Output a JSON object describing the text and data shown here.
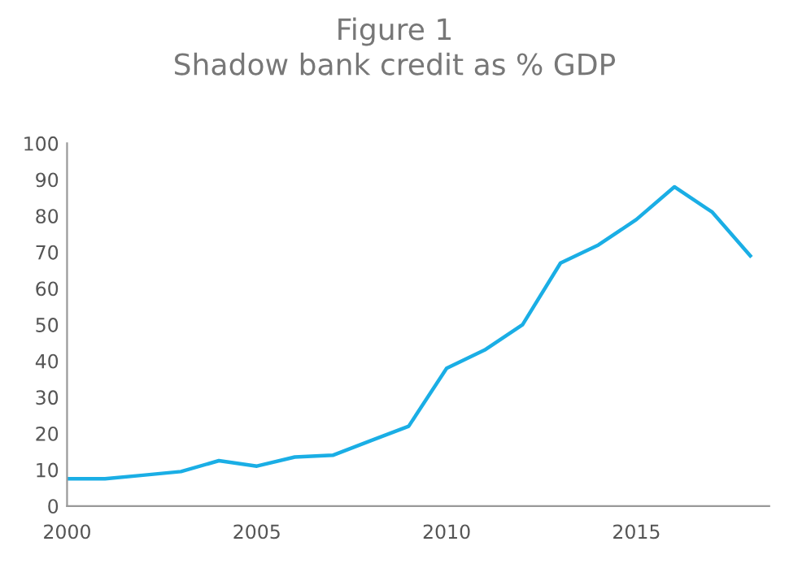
{
  "chart_data": {
    "type": "line",
    "title": "Figure 1\nShadow bank credit as % GDP",
    "x": [
      2000,
      2001,
      2002,
      2003,
      2004,
      2005,
      2006,
      2007,
      2008,
      2009,
      2010,
      2011,
      2012,
      2013,
      2014,
      2015,
      2016,
      2017,
      2018
    ],
    "series": [
      {
        "color": "#1aaee5",
        "values": [
          7.5,
          7.5,
          8.5,
          9.5,
          12.5,
          11,
          13.5,
          14,
          18,
          22,
          38,
          43,
          50,
          67,
          72,
          79,
          88,
          81,
          69
        ]
      }
    ],
    "xlim": [
      2000,
      2018.5
    ],
    "xticks": [
      2000,
      2005,
      2010,
      2015
    ],
    "ylim": [
      0,
      100
    ],
    "yticks": [
      0,
      10,
      20,
      30,
      40,
      50,
      60,
      70,
      80,
      90,
      100
    ],
    "grid": false,
    "legend": false,
    "marker": "none",
    "line_style": "solid"
  }
}
